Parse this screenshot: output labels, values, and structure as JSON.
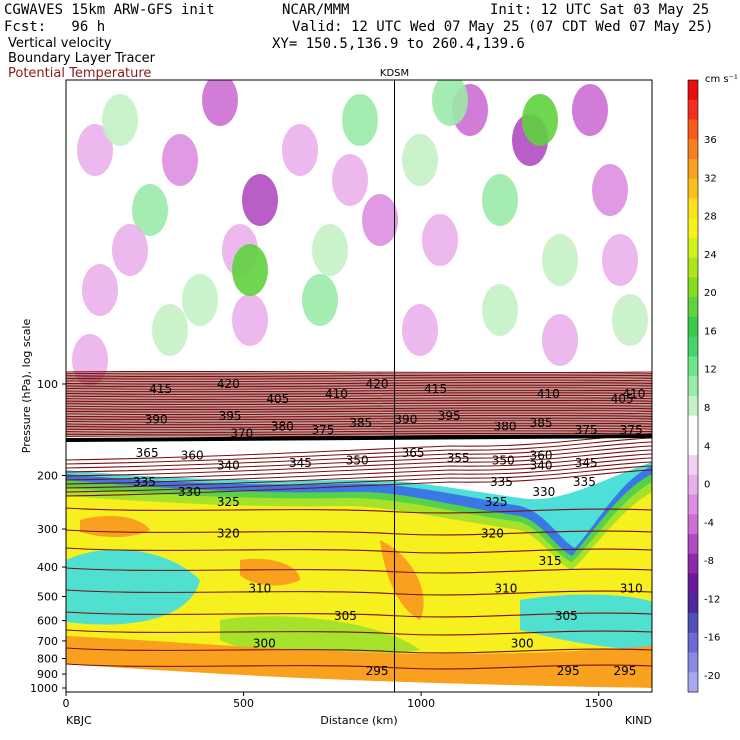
{
  "header": {
    "model": "CGWAVES 15km ARW-GFS init",
    "org": "NCAR/MMM",
    "init": "Init: 12 UTC Sat 03 May 25",
    "fcst": "Fcst:   96 h",
    "valid": "Valid: 12 UTC Wed 07 May 25 (07 CDT Wed 07 May 25)",
    "field1": "Vertical velocity",
    "xy": "XY= 150.5,136.9 to 260.4,139.6",
    "field2": "Boundary Layer Tracer",
    "field3": "Potential Temperature"
  },
  "chart_data": {
    "type": "heatmap",
    "title": "",
    "xlabel": "Distance (km)",
    "ylabel": "Pressure (hPa), log scale",
    "xlim": [
      0,
      1650
    ],
    "x_ticks": [
      0,
      500,
      1000,
      1500
    ],
    "y_ticks": [
      100,
      200,
      300,
      400,
      500,
      600,
      700,
      800,
      900,
      1000
    ],
    "y_scale": "log",
    "endpoints": {
      "left": "KBJC",
      "right": "KIND"
    },
    "marker": {
      "label": "KDSM",
      "x": 925
    },
    "colorbar": {
      "unit": "cm s⁻¹",
      "labels": [
        36,
        32,
        28,
        24,
        20,
        16,
        12,
        8,
        4,
        0,
        -4,
        -8,
        -12,
        -16,
        -20
      ],
      "colors": [
        "#e8100f",
        "#f0301e",
        "#f55a1e",
        "#f77f1f",
        "#f9a01e",
        "#fbc01e",
        "#fce21e",
        "#f6f21e",
        "#d2ef1e",
        "#aee61e",
        "#86dc1e",
        "#5fd23e",
        "#3cc84a",
        "#48d46a",
        "#6fe28c",
        "#9aeaa8",
        "#c4f2c6",
        "#ffffff",
        "#ffffff",
        "#f4cff4",
        "#eab0ec",
        "#dc8fe0",
        "#cc6fd4",
        "#b04cc0",
        "#8c2aa8",
        "#6a1a98",
        "#4c2a9c",
        "#5050b8",
        "#6a6ad0",
        "#8a8ae0",
        "#a8a8ef"
      ]
    },
    "theta_contours": [
      {
        "value": 415,
        "x": 105
      },
      {
        "value": 420,
        "x": 180
      },
      {
        "value": 420,
        "x": 345
      },
      {
        "value": 415,
        "x": 410
      },
      {
        "value": 410,
        "x": 535
      },
      {
        "value": 405,
        "x": 617
      },
      {
        "value": 405,
        "x": 235
      },
      {
        "value": 410,
        "x": 300
      },
      {
        "value": 390,
        "x": 100
      },
      {
        "value": 395,
        "x": 182
      },
      {
        "value": 395,
        "x": 425
      },
      {
        "value": 385,
        "x": 327
      },
      {
        "value": 390,
        "x": 377
      },
      {
        "value": 385,
        "x": 527
      },
      {
        "value": 380,
        "x": 487
      },
      {
        "value": 375,
        "x": 577
      },
      {
        "value": 375,
        "x": 627
      },
      {
        "value": 380,
        "x": 240
      },
      {
        "value": 375,
        "x": 285
      },
      {
        "value": 365,
        "x": 90
      },
      {
        "value": 360,
        "x": 140
      },
      {
        "value": 370,
        "x": 195
      },
      {
        "value": 365,
        "x": 385
      },
      {
        "value": 360,
        "x": 527
      },
      {
        "value": 355,
        "x": 435
      },
      {
        "value": 350,
        "x": 485
      },
      {
        "value": 345,
        "x": 577
      },
      {
        "value": 345,
        "x": 260
      },
      {
        "value": 350,
        "x": 323
      },
      {
        "value": 340,
        "x": 527
      },
      {
        "value": 335,
        "x": 87
      },
      {
        "value": 330,
        "x": 137
      },
      {
        "value": 340,
        "x": 180
      },
      {
        "value": 335,
        "x": 483
      },
      {
        "value": 335,
        "x": 575
      },
      {
        "value": 330,
        "x": 530
      },
      {
        "value": 410,
        "x": 630
      },
      {
        "value": 325,
        "x": 180
      },
      {
        "value": 325,
        "x": 477
      },
      {
        "value": 320,
        "x": 180
      },
      {
        "value": 320,
        "x": 473
      },
      {
        "value": 310,
        "x": 215
      },
      {
        "value": 315,
        "x": 537
      },
      {
        "value": 310,
        "x": 488
      },
      {
        "value": 310,
        "x": 627
      },
      {
        "value": 305,
        "x": 310
      },
      {
        "value": 305,
        "x": 555
      },
      {
        "value": 300,
        "x": 220
      },
      {
        "value": 300,
        "x": 506
      },
      {
        "value": 295,
        "x": 345
      },
      {
        "value": 295,
        "x": 557
      },
      {
        "value": 295,
        "x": 620
      }
    ]
  }
}
